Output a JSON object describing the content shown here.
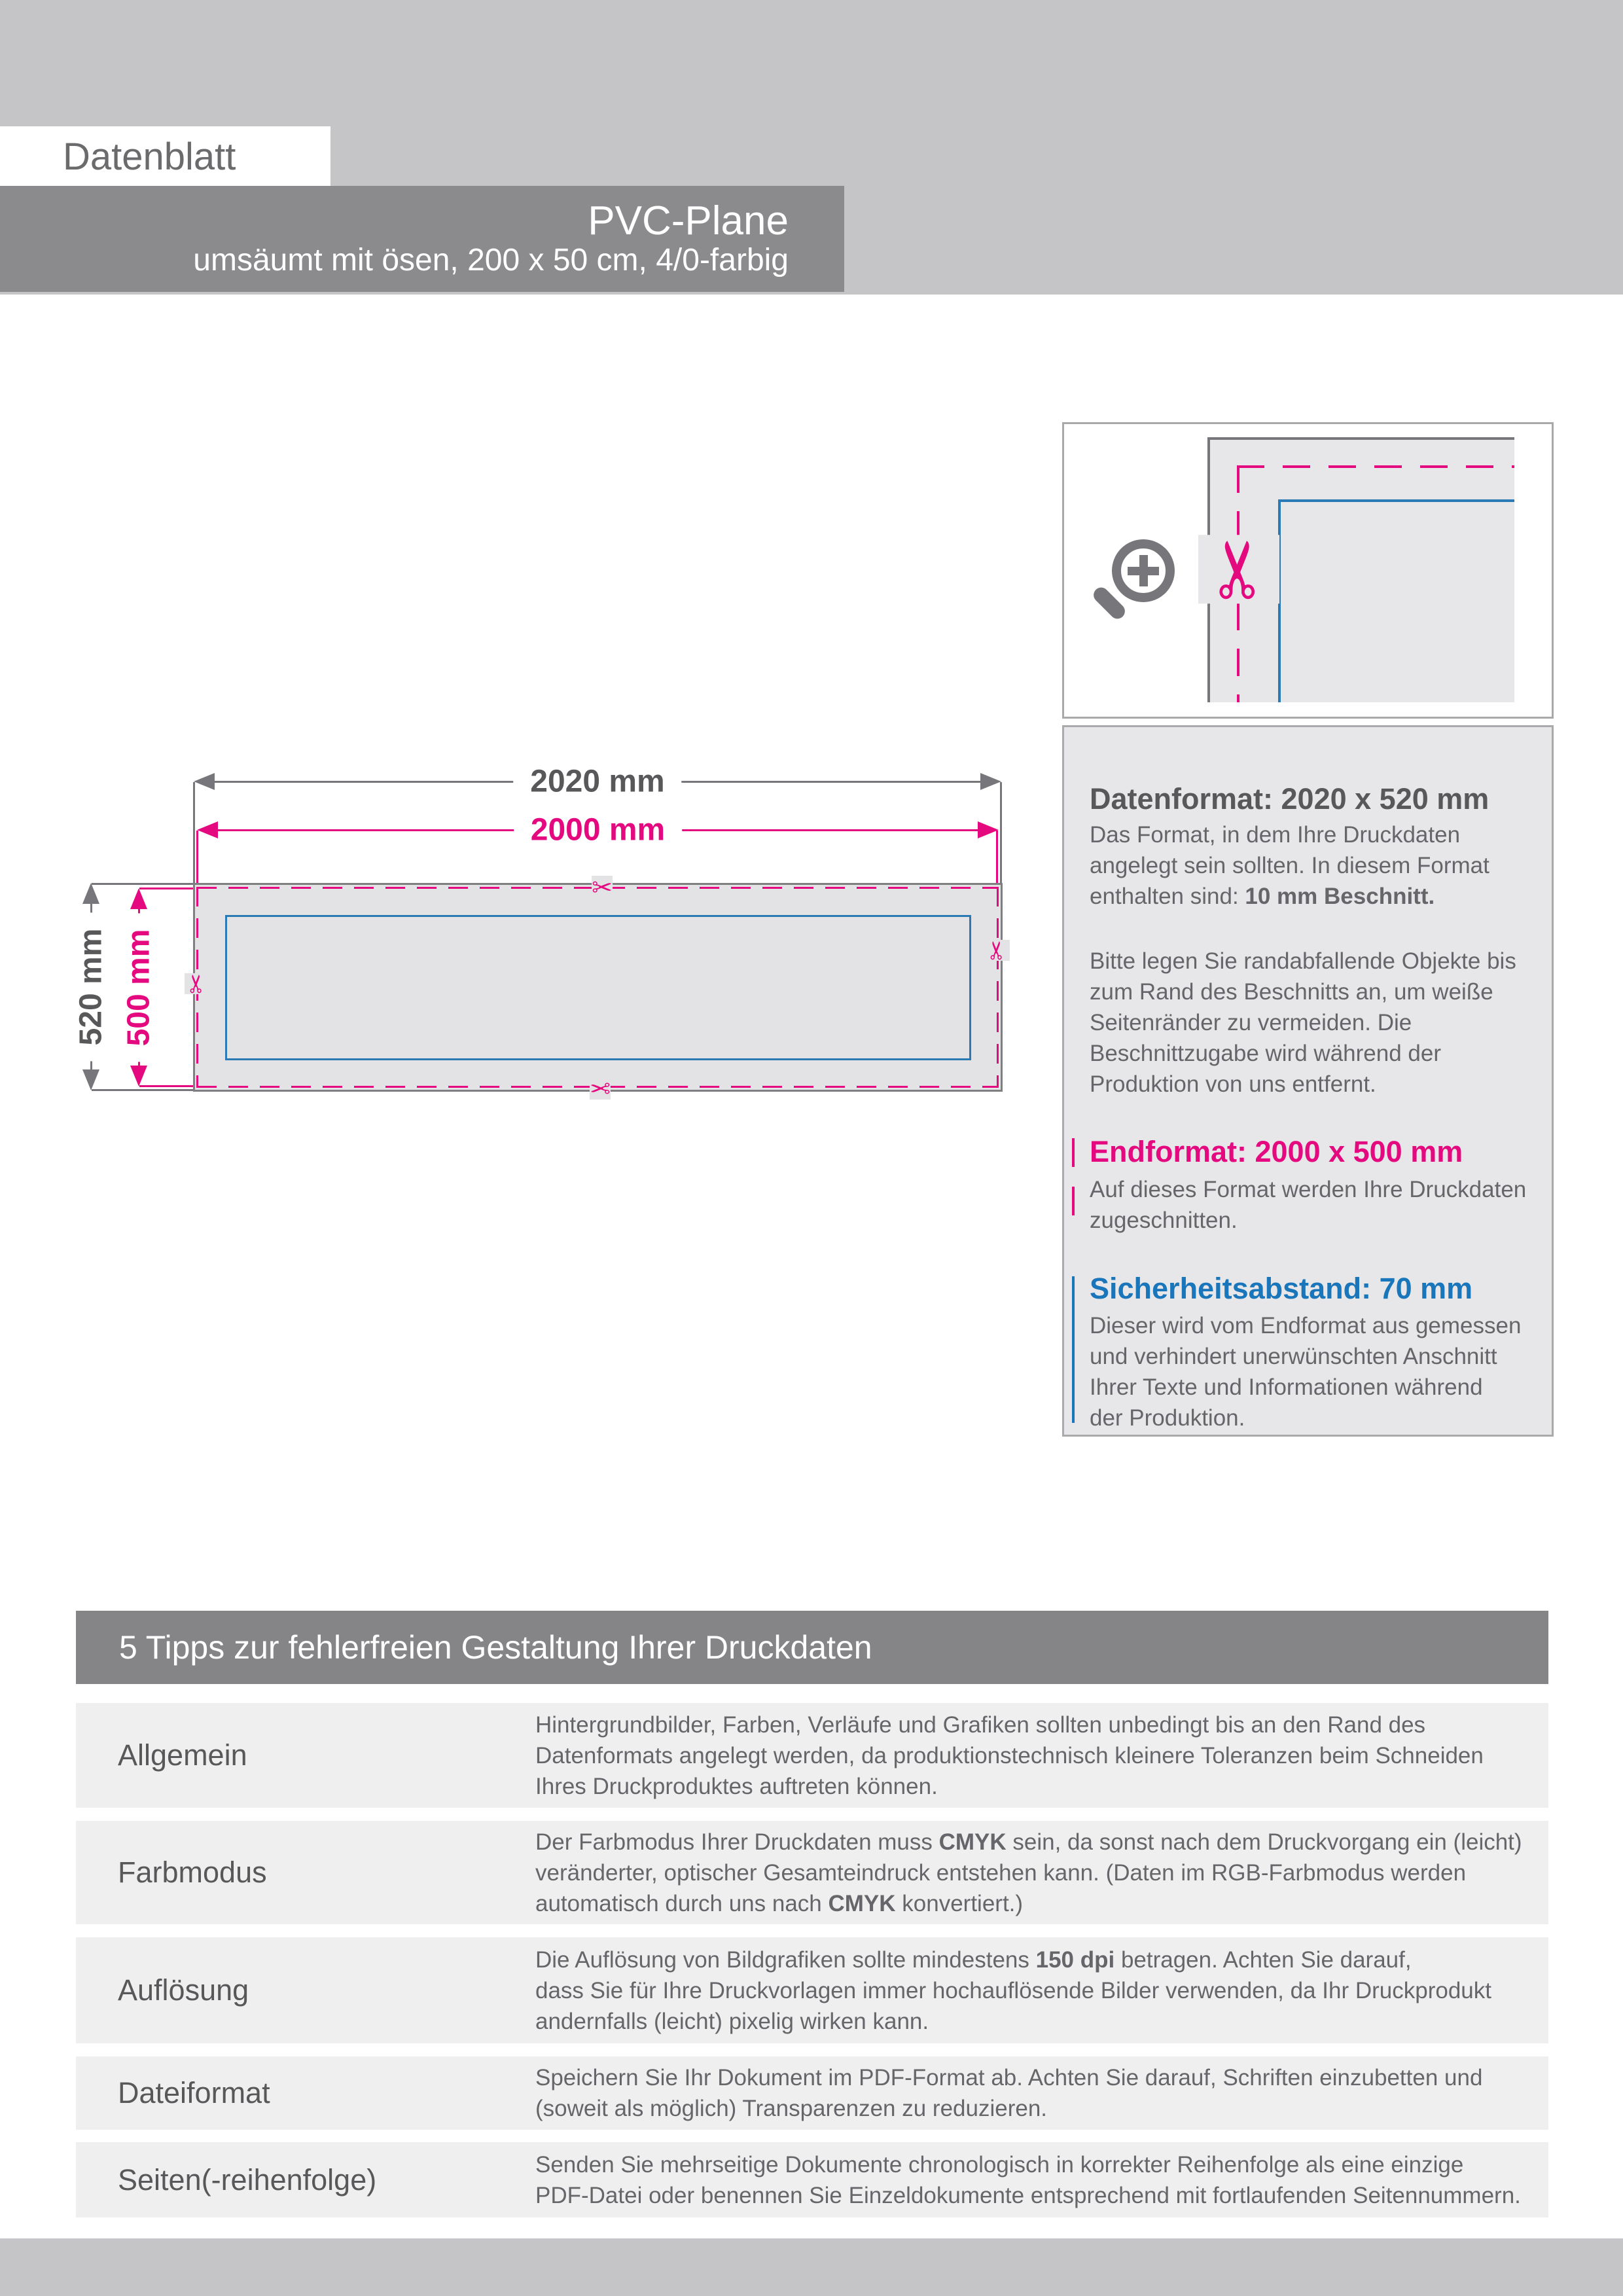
{
  "header": {
    "doc_label": "Datenblatt",
    "product_title": "PVC-Plane",
    "product_subtitle": "umsäumt mit ösen, 200 x 50 cm, 4/0-farbig"
  },
  "diagram": {
    "outer_width_label": "2020 mm",
    "inner_width_label": "2000 mm",
    "outer_height_label": "520 mm",
    "inner_height_label": "500 mm"
  },
  "icons": {
    "scissors_glyph": "✂",
    "zoom_icon_name": "zoom-in-icon",
    "scissors_icon_name": "scissors-icon"
  },
  "info_panel": {
    "sections": [
      {
        "heading": "Datenformat: 2020 x 520 mm",
        "paragraphs": [
          [
            {
              "t": "Das Format, in dem Ihre Druckdaten"
            },
            {
              "br": true
            },
            {
              "t": "angelegt sein sollten. In diesem Format"
            },
            {
              "br": true
            },
            {
              "t": "enthalten sind: "
            },
            {
              "t": "10 mm Beschnitt.",
              "b": true
            }
          ],
          [
            {
              "t": "Bitte legen Sie randabfallende Objekte bis"
            },
            {
              "br": true
            },
            {
              "t": "zum Rand des Beschnitts an, um weiße"
            },
            {
              "br": true
            },
            {
              "t": "Seitenränder zu vermeiden. Die"
            },
            {
              "br": true
            },
            {
              "t": "Beschnittzugabe wird während der"
            },
            {
              "br": true
            },
            {
              "t": "Produktion von uns entfernt."
            }
          ]
        ]
      },
      {
        "heading": "Endformat: 2000 x 500 mm",
        "paragraphs": [
          [
            {
              "t": "Auf dieses Format werden Ihre Druckdaten"
            },
            {
              "br": true
            },
            {
              "t": "zugeschnitten."
            }
          ]
        ]
      },
      {
        "heading": "Sicherheitsabstand: 70 mm",
        "paragraphs": [
          [
            {
              "t": "Dieser wird vom Endformat aus gemessen"
            },
            {
              "br": true
            },
            {
              "t": "und verhindert unerwünschten Anschnitt"
            },
            {
              "br": true
            },
            {
              "t": "Ihrer Texte und Informationen während"
            },
            {
              "br": true
            },
            {
              "t": "der Produktion."
            }
          ]
        ]
      }
    ]
  },
  "tips": {
    "title": "5 Tipps zur fehlerfreien Gestaltung Ihrer Druckdaten",
    "rows": [
      {
        "label": "Allgemein",
        "text": [
          {
            "t": "Hintergrundbilder, Farben, Verläufe und Grafiken sollten unbedingt bis an den Rand des"
          },
          {
            "br": true
          },
          {
            "t": "Datenformats angelegt werden, da produktionstechnisch kleinere Toleranzen beim Schneiden"
          },
          {
            "br": true
          },
          {
            "t": "Ihres Druckproduktes auftreten können."
          }
        ]
      },
      {
        "label": "Farbmodus",
        "text": [
          {
            "t": "Der Farbmodus Ihrer Druckdaten muss "
          },
          {
            "t": "CMYK",
            "b": true
          },
          {
            "t": " sein, da sonst nach dem Druckvorgang ein (leicht)"
          },
          {
            "br": true
          },
          {
            "t": "veränderter, optischer Gesamteindruck entstehen kann. (Daten im RGB-Farbmodus werden"
          },
          {
            "br": true
          },
          {
            "t": "automatisch durch uns nach "
          },
          {
            "t": "CMYK",
            "b": true
          },
          {
            "t": " konvertiert.)"
          }
        ]
      },
      {
        "label": "Auflösung",
        "text": [
          {
            "t": "Die Auflösung von Bildgrafiken sollte mindestens "
          },
          {
            "t": "150 dpi",
            "b": true
          },
          {
            "t": " betragen. Achten Sie darauf,"
          },
          {
            "br": true
          },
          {
            "t": "dass Sie für Ihre Druckvorlagen immer hochauflösende Bilder verwenden, da Ihr Druckprodukt"
          },
          {
            "br": true
          },
          {
            "t": "andernfalls (leicht) pixelig wirken kann."
          }
        ]
      },
      {
        "label": "Dateiformat",
        "text": [
          {
            "t": "Speichern Sie Ihr Dokument im PDF-Format ab. Achten Sie darauf, Schriften einzubetten und"
          },
          {
            "br": true
          },
          {
            "t": "(soweit als möglich) Transparenzen zu reduzieren."
          }
        ]
      },
      {
        "label": "Seiten(-reihenfolge)",
        "text": [
          {
            "t": "Senden Sie mehrseitige Dokumente chronologisch in korrekter Reihenfolge als eine einzige"
          },
          {
            "br": true
          },
          {
            "t": "PDF-Datei oder benennen Sie Einzeldokumente entsprechend mit fortlaufenden Seitennummern."
          }
        ]
      }
    ]
  },
  "colors": {
    "band_gray": "#c5c4c6",
    "product_box_gray": "#8b8a8c",
    "tips_bar_gray": "#858487",
    "tips_row_gray": "#f0eff0",
    "panel_gray": "#e7e6e8",
    "sheet_gray": "#e3e2e4",
    "line_gray": "#77767a",
    "magenta": "#e5097f",
    "blue": "#2a7ab5",
    "heading_text": "#58585a",
    "body_text": "#666569"
  }
}
